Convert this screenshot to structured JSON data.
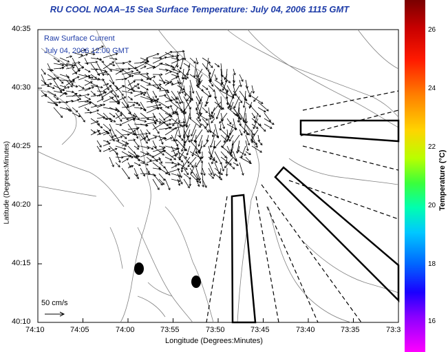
{
  "title": "RU COOL  NOAA–15  Sea Surface Temperature:  July 04, 2006 1115 GMT",
  "legend": {
    "line1": "Raw Surface Current",
    "line2": "July 04, 2006 12:00 GMT"
  },
  "scale_label": "50 cm/s",
  "x_axis": {
    "label": "Longitude (Degrees:Minutes)",
    "ticks": [
      "74:10",
      "74:05",
      "74:00",
      "73:55",
      "73:50",
      "73:45",
      "73:40",
      "73:35",
      "73:3"
    ]
  },
  "y_axis": {
    "label": "Latitude (Degrees:Minutes)",
    "ticks": [
      "40:35",
      "40:30",
      "40:25",
      "40:20",
      "40:15",
      "40:10"
    ]
  },
  "colorbar": {
    "label": "Temperature (°C)",
    "ticks": [
      "26",
      "24",
      "22",
      "20",
      "18",
      "16"
    ]
  },
  "colors": {
    "title": "#1e3ca8",
    "contour": "#808080",
    "axes": "#000000"
  }
}
